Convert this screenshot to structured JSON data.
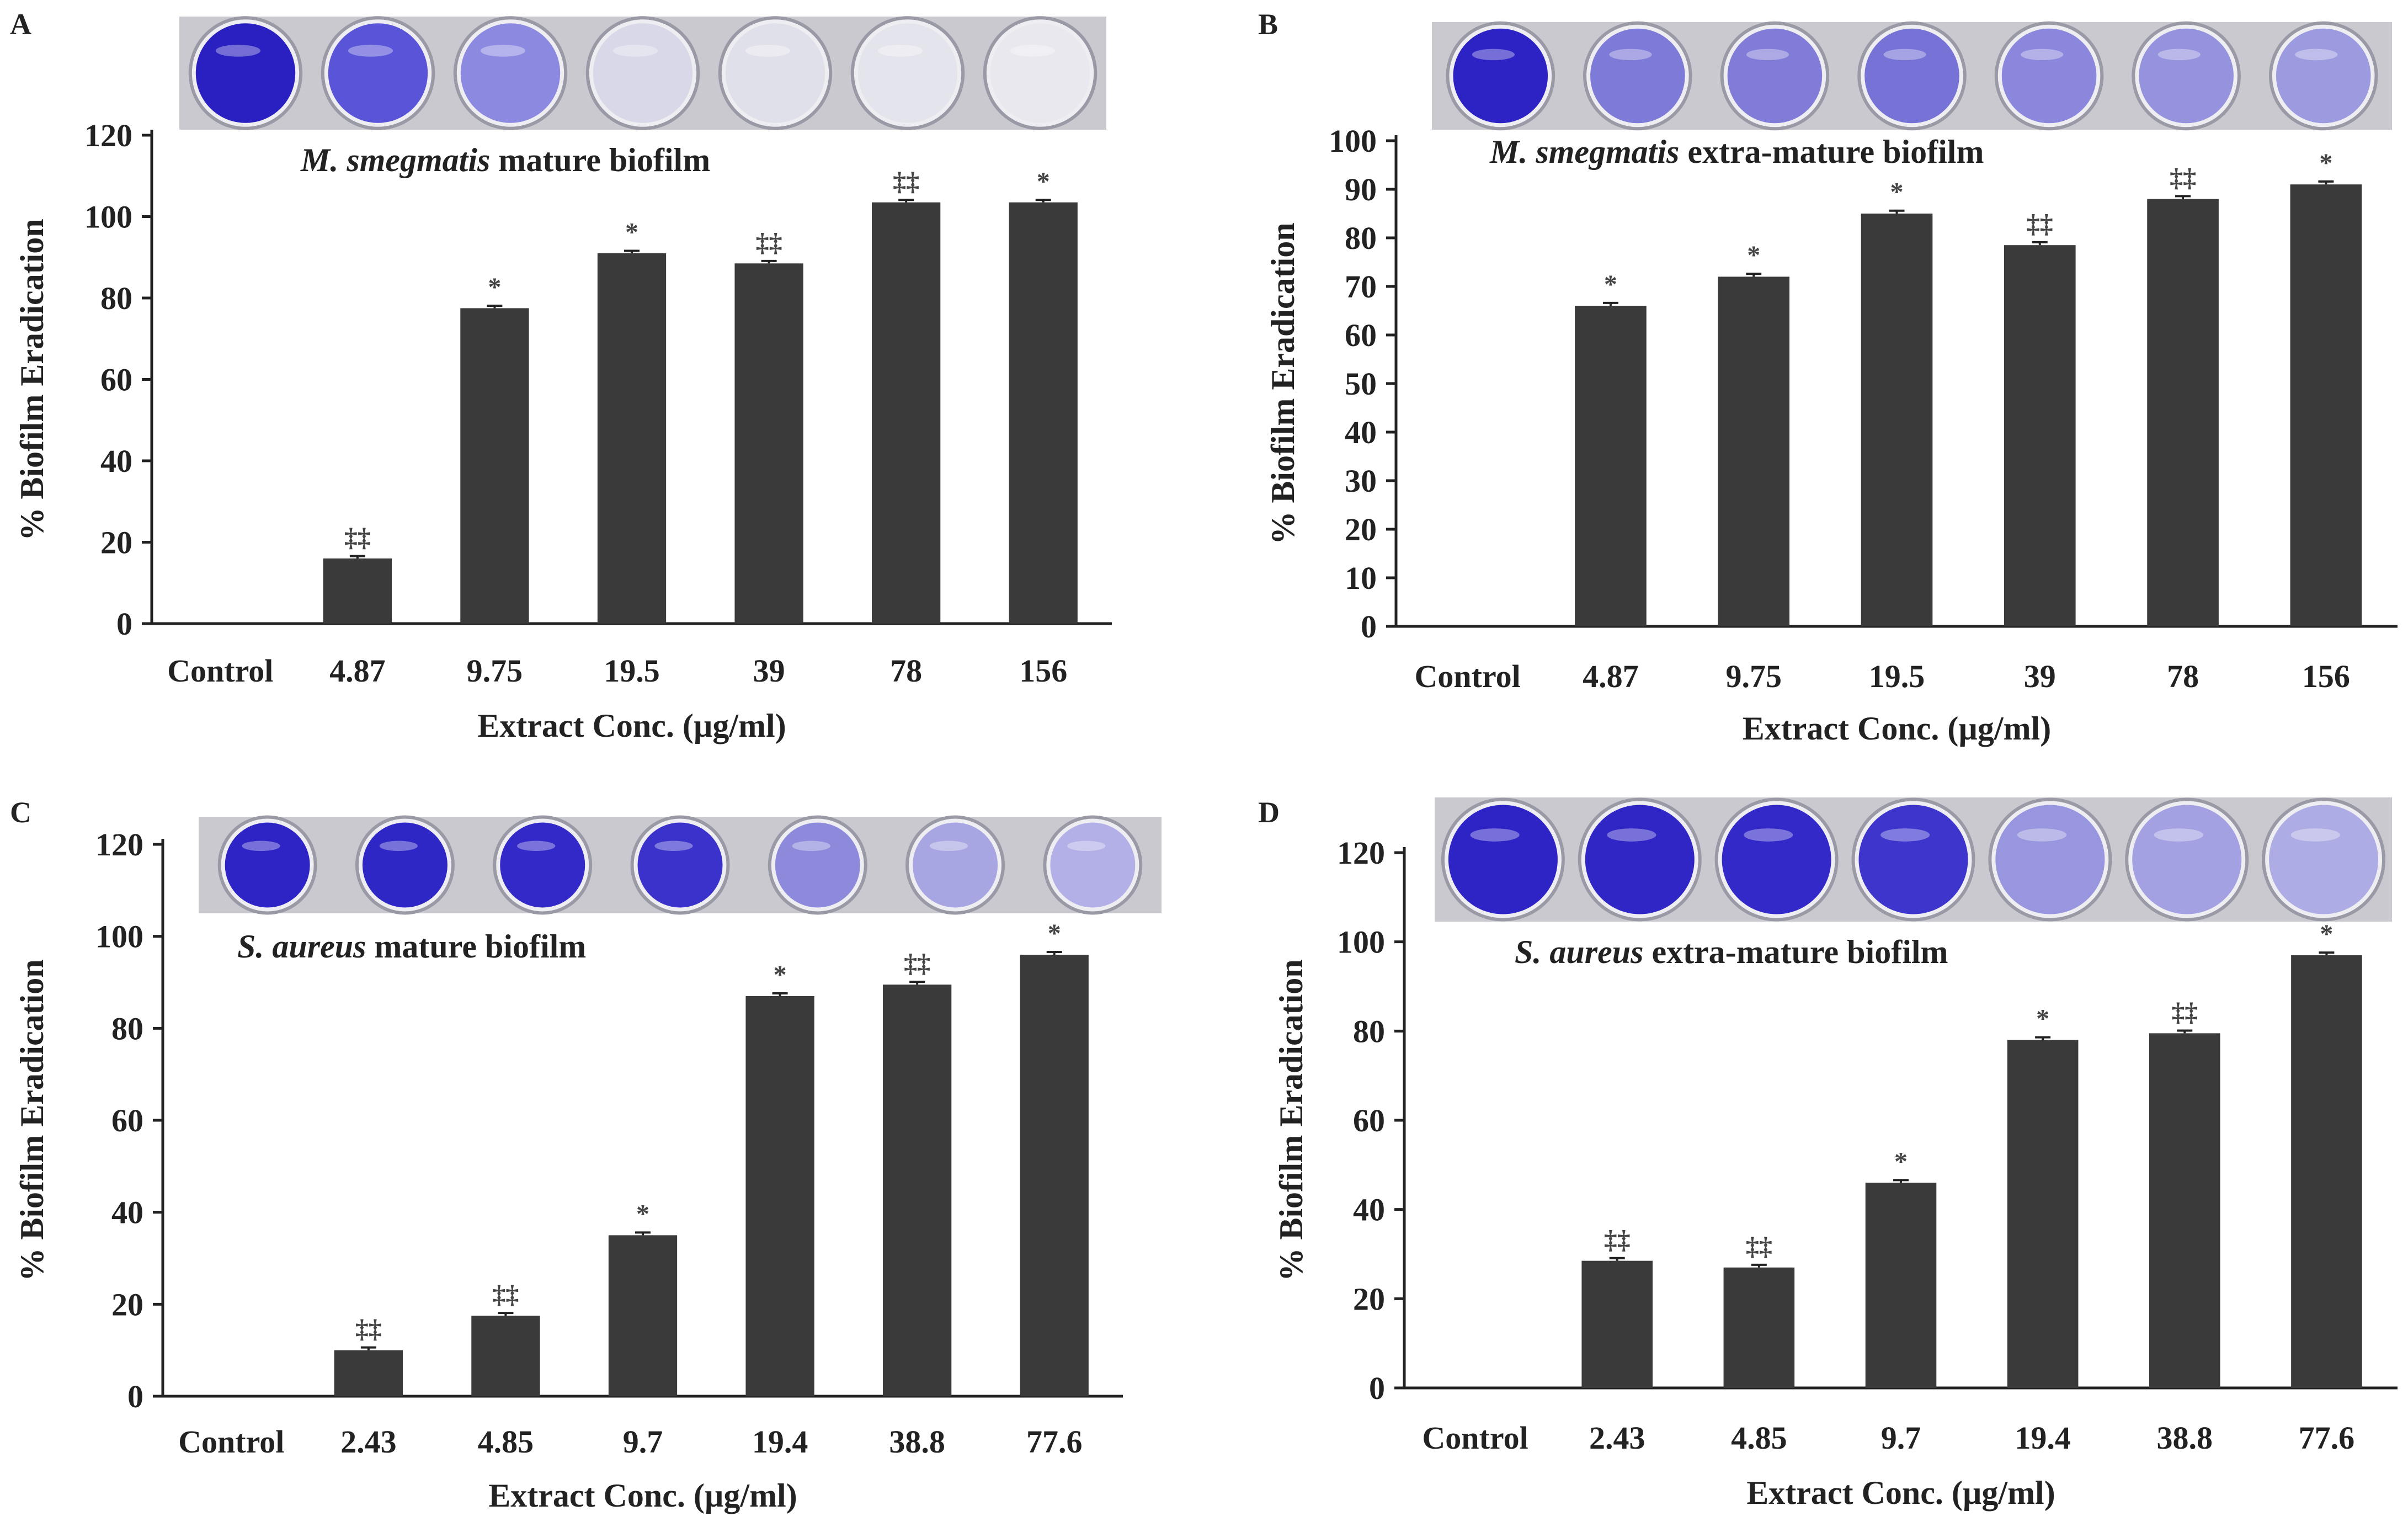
{
  "figure": {
    "panels": [
      "A",
      "B",
      "C",
      "D"
    ]
  },
  "chart_data": [
    {
      "type": "bar",
      "panel": "A",
      "subtitle_italic": "M. smegmatis",
      "subtitle_rest": " mature biofilm",
      "categories": [
        "Control",
        "4.87",
        "9.75",
        "19.5",
        "39",
        "78",
        "156"
      ],
      "values": [
        0,
        16,
        77.5,
        91,
        88.5,
        103.5,
        103.5
      ],
      "errors": [
        0,
        0.6,
        0.6,
        0.6,
        0.6,
        0.6,
        0.6
      ],
      "markers": [
        "",
        "‡‡",
        "*",
        "*",
        "‡‡",
        "‡‡",
        "*"
      ],
      "xlabel": "Extract Conc. (µg/ml)",
      "ylabel": "% Biofilm Eradication",
      "ylim": [
        0,
        120
      ],
      "yticks": [
        0,
        20,
        40,
        60,
        80,
        100,
        120
      ],
      "bar_color": "#3a3a3a",
      "well_colors": [
        "#2a1fc0",
        "#5a55d8",
        "#8c8ae0",
        "#d8d8e8",
        "#e0e0ea",
        "#e4e4ec",
        "#e8e8ee"
      ]
    },
    {
      "type": "bar",
      "panel": "B",
      "subtitle_italic": "M. smegmatis",
      "subtitle_rest": " extra-mature biofilm",
      "categories": [
        "Control",
        "4.87",
        "9.75",
        "19.5",
        "39",
        "78",
        "156"
      ],
      "values": [
        0,
        66,
        72,
        85,
        78.5,
        88,
        91
      ],
      "errors": [
        0,
        0.6,
        0.6,
        0.6,
        0.6,
        0.6,
        0.6
      ],
      "markers": [
        "",
        "*",
        "*",
        "*",
        "‡‡",
        "‡‡",
        "*"
      ],
      "xlabel": "Extract Conc. (µg/ml)",
      "ylabel": "% Biofilm Eradication",
      "ylim": [
        0,
        100
      ],
      "yticks": [
        0,
        10,
        20,
        30,
        40,
        50,
        60,
        70,
        80,
        90,
        100
      ],
      "bar_color": "#3a3a3a",
      "well_colors": [
        "#2d22c4",
        "#7e7ad8",
        "#807cd8",
        "#7672d6",
        "#8a87dc",
        "#9593de",
        "#9d9be0"
      ]
    },
    {
      "type": "bar",
      "panel": "C",
      "subtitle_italic": "S. aureus",
      "subtitle_rest": " mature biofilm",
      "categories": [
        "Control",
        "2.43",
        "4.85",
        "9.7",
        "19.4",
        "38.8",
        "77.6"
      ],
      "values": [
        0,
        10,
        17.5,
        35,
        87,
        89.5,
        96
      ],
      "errors": [
        0,
        0.6,
        0.6,
        0.6,
        0.6,
        0.6,
        0.6
      ],
      "markers": [
        "",
        "‡‡",
        "‡‡",
        "*",
        "*",
        "‡‡",
        "*"
      ],
      "xlabel": "Extract Conc. (µg/ml)",
      "ylabel": "% Biofilm Eradication",
      "ylim": [
        0,
        120
      ],
      "yticks": [
        0,
        20,
        40,
        60,
        80,
        100,
        120
      ],
      "bar_color": "#3a3a3a",
      "well_colors": [
        "#2e24c6",
        "#2f26c6",
        "#3229c8",
        "#3a32ca",
        "#8d8adc",
        "#a8a6e2",
        "#b2b0e6"
      ]
    },
    {
      "type": "bar",
      "panel": "D",
      "subtitle_italic": "S. aureus",
      "subtitle_rest": " extra-mature biofilm",
      "categories": [
        "Control",
        "2.43",
        "4.85",
        "9.7",
        "19.4",
        "38.8",
        "77.6"
      ],
      "values": [
        0,
        28.5,
        27,
        46,
        78,
        79.5,
        97
      ],
      "errors": [
        0,
        0.6,
        0.6,
        0.6,
        0.6,
        0.6,
        0.6
      ],
      "markers": [
        "",
        "‡‡",
        "‡‡",
        "*",
        "*",
        "‡‡",
        "*"
      ],
      "xlabel": "Extract Conc. (µg/ml)",
      "ylabel": "% Biofilm Eradication",
      "ylim": [
        0,
        120
      ],
      "yticks": [
        0,
        20,
        40,
        60,
        80,
        100,
        120
      ],
      "bar_color": "#3a3a3a",
      "well_colors": [
        "#2e24c6",
        "#3026c6",
        "#3229c8",
        "#3d35cc",
        "#9896de",
        "#a3a1e2",
        "#aeace4"
      ]
    }
  ]
}
